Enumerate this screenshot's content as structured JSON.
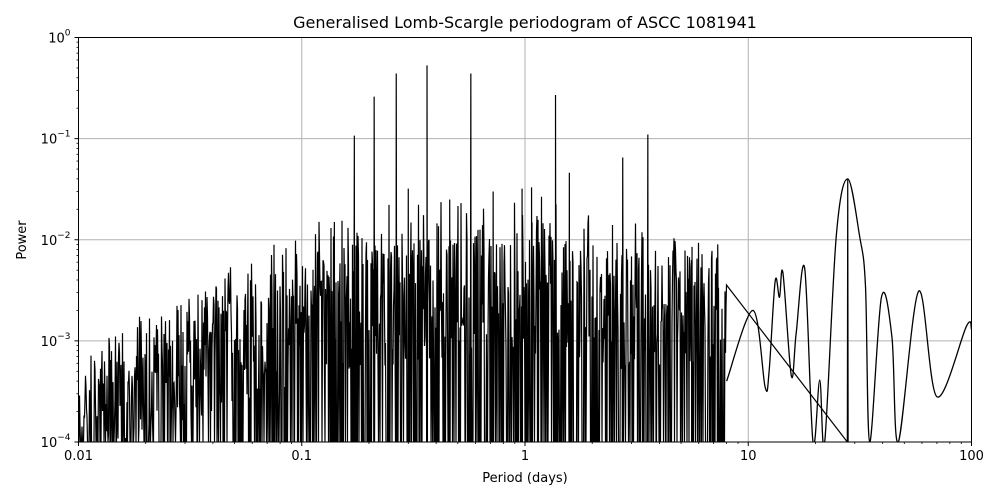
{
  "chart_data": {
    "type": "line",
    "title": "Generalised Lomb-Scargle periodogram of ASCC 1081941",
    "xlabel": "Period (days)",
    "ylabel": "Power",
    "xscale": "log",
    "yscale": "log",
    "xlim": [
      0.01,
      100
    ],
    "ylim": [
      0.0001,
      1
    ],
    "grid": true,
    "legend": null,
    "line_color": "#000000",
    "grid_color": "#b0b0b0",
    "x_ticks": [
      {
        "value": 0.01,
        "label": "0.01"
      },
      {
        "value": 0.1,
        "label": "0.1"
      },
      {
        "value": 1,
        "label": "1"
      },
      {
        "value": 10,
        "label": "10"
      },
      {
        "value": 100,
        "label": "100"
      }
    ],
    "y_ticks": [
      {
        "value": 0.0001,
        "base": "10",
        "exp": "−4"
      },
      {
        "value": 0.001,
        "base": "10",
        "exp": "−3"
      },
      {
        "value": 0.01,
        "base": "10",
        "exp": "−2"
      },
      {
        "value": 0.1,
        "base": "10",
        "exp": "−1"
      },
      {
        "value": 1,
        "base": "10",
        "exp": "0"
      }
    ],
    "dominant_peaks": [
      {
        "period": 0.172,
        "power": 0.107
      },
      {
        "period": 0.211,
        "power": 0.26
      },
      {
        "period": 0.265,
        "power": 0.44
      },
      {
        "period": 0.364,
        "power": 0.53
      },
      {
        "period": 0.572,
        "power": 0.44
      },
      {
        "period": 1.37,
        "power": 0.27
      },
      {
        "period": 2.74,
        "power": 0.065
      },
      {
        "period": 3.55,
        "power": 0.11
      },
      {
        "period": 27.9,
        "power": 0.04
      }
    ],
    "secondary_peaks": [
      {
        "period": 0.14,
        "power": 0.015
      },
      {
        "period": 0.3,
        "power": 0.032
      },
      {
        "period": 0.46,
        "power": 0.025
      },
      {
        "period": 0.72,
        "power": 0.03
      },
      {
        "period": 0.97,
        "power": 0.032
      },
      {
        "period": 1.07,
        "power": 0.033
      },
      {
        "period": 1.58,
        "power": 0.046
      },
      {
        "period": 5.6,
        "power": 0.0085
      },
      {
        "period": 7.3,
        "power": 0.009
      },
      {
        "period": 8.6,
        "power": 0.004
      },
      {
        "period": 13.2,
        "power": 0.0039
      },
      {
        "period": 14.3,
        "power": 0.0047
      },
      {
        "period": 17.9,
        "power": 0.0052
      },
      {
        "period": 21.0,
        "power": 0.0004
      },
      {
        "period": 39.5,
        "power": 0.0027
      },
      {
        "period": 58.0,
        "power": 0.0031
      },
      {
        "period": 95.0,
        "power": 0.0014
      }
    ],
    "smooth_tail": [
      {
        "period": 8.0,
        "power": 0.0004
      },
      {
        "period": 10.5,
        "power": 0.002
      },
      {
        "period": 11.9,
        "power": 0.00035
      },
      {
        "period": 12.4,
        "power": 0.0005
      },
      {
        "period": 13.2,
        "power": 0.0039
      },
      {
        "period": 13.8,
        "power": 0.0027
      },
      {
        "period": 14.3,
        "power": 0.0047
      },
      {
        "period": 15.6,
        "power": 0.00045
      },
      {
        "period": 16.4,
        "power": 0.0012
      },
      {
        "period": 17.9,
        "power": 0.0052
      },
      {
        "period": 19.5,
        "power": 0.0001
      },
      {
        "period": 20.9,
        "power": 0.00041
      },
      {
        "period": 22.0,
        "power": 0.0001
      },
      {
        "period": 24.8,
        "power": 0.011
      },
      {
        "period": 27.9,
        "power": 0.04
      },
      {
        "period": 31.5,
        "power": 0.011
      },
      {
        "period": 33.5,
        "power": 0.0035
      },
      {
        "period": 35.0,
        "power": 0.0001
      },
      {
        "period": 39.5,
        "power": 0.0027
      },
      {
        "period": 44.0,
        "power": 0.0011
      },
      {
        "period": 47.0,
        "power": 0.0001
      },
      {
        "period": 58.0,
        "power": 0.0031
      },
      {
        "period": 70.0,
        "power": 0.00028
      },
      {
        "period": 95.0,
        "power": 0.0014
      },
      {
        "period": 100.0,
        "power": 0.0013
      }
    ],
    "noise_floor_trend": [
      {
        "period": 0.01,
        "power": 0.00018
      },
      {
        "period": 0.02,
        "power": 0.0005
      },
      {
        "period": 0.05,
        "power": 0.0009
      },
      {
        "period": 0.1,
        "power": 0.0014
      },
      {
        "period": 0.3,
        "power": 0.0025
      },
      {
        "period": 1.0,
        "power": 0.003
      },
      {
        "period": 3.0,
        "power": 0.002
      }
    ],
    "upper_envelope_trend": [
      {
        "period": 0.01,
        "power": 0.00015
      },
      {
        "period": 0.013,
        "power": 0.0006
      },
      {
        "period": 0.015,
        "power": 0.0012
      },
      {
        "period": 0.02,
        "power": 0.0016
      },
      {
        "period": 0.03,
        "power": 0.0025
      },
      {
        "period": 0.05,
        "power": 0.006
      },
      {
        "period": 0.08,
        "power": 0.01
      },
      {
        "period": 0.1,
        "power": 0.013
      },
      {
        "period": 0.15,
        "power": 0.02
      }
    ]
  }
}
